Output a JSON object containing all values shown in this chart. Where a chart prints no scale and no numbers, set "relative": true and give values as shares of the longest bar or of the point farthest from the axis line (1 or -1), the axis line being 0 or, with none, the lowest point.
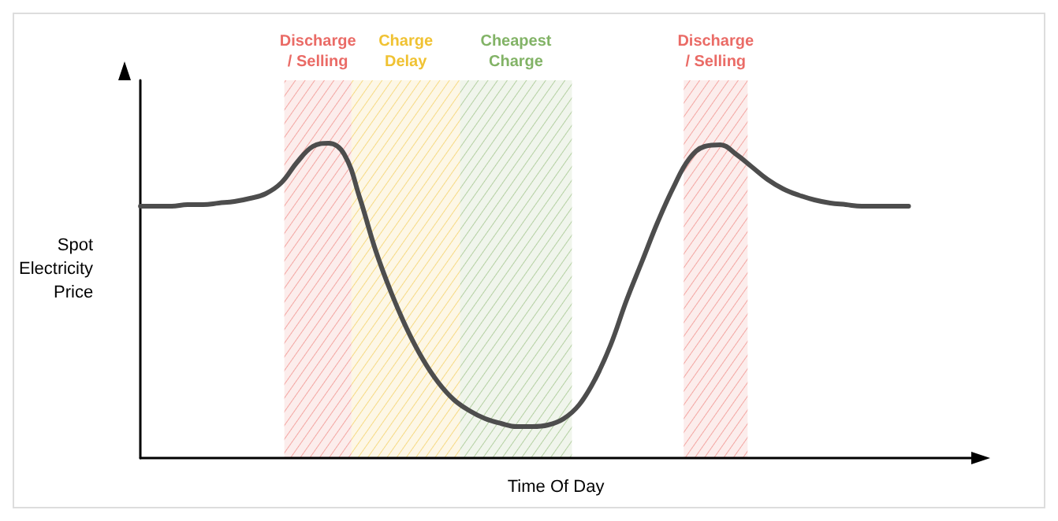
{
  "chart_data": {
    "type": "line",
    "relative": true,
    "xlabel": "Time Of Day",
    "ylabel": "Spot\nElectricity\nPrice",
    "categories": [
      null,
      null,
      null,
      null,
      null,
      null,
      null,
      null,
      null,
      null,
      null,
      null,
      null,
      null,
      null,
      null,
      null,
      null,
      null,
      null,
      null,
      null,
      null,
      null,
      null,
      null,
      null,
      null,
      null,
      null,
      null,
      null,
      null,
      null,
      null,
      null,
      null,
      null,
      null,
      null,
      null,
      null,
      null,
      null,
      null,
      null,
      null,
      null,
      null,
      null,
      null,
      null,
      null,
      null
    ],
    "series": [
      {
        "color": "#4d4d4d",
        "values": [
          0.8,
          0.8,
          0.8,
          0.805,
          0.805,
          0.81,
          0.815,
          0.825,
          0.84,
          0.875,
          0.94,
          0.99,
          1.0,
          0.965,
          0.825,
          0.66,
          0.525,
          0.41,
          0.315,
          0.24,
          0.185,
          0.15,
          0.125,
          0.11,
          0.1,
          0.1,
          0.105,
          0.125,
          0.17,
          0.25,
          0.36,
          0.5,
          0.625,
          0.75,
          0.86,
          0.95,
          0.99,
          0.995,
          0.965,
          0.925,
          0.885,
          0.855,
          0.835,
          0.82,
          0.81,
          0.805,
          0.8,
          0.8,
          0.8,
          0.8,
          null,
          null,
          null,
          null
        ]
      }
    ],
    "annotations": [
      "Discharge\n/ Selling",
      "Charge\nDelay",
      "Cheapest\nCharge",
      "Discharge\n/ Selling"
    ],
    "line_style": "solid"
  }
}
